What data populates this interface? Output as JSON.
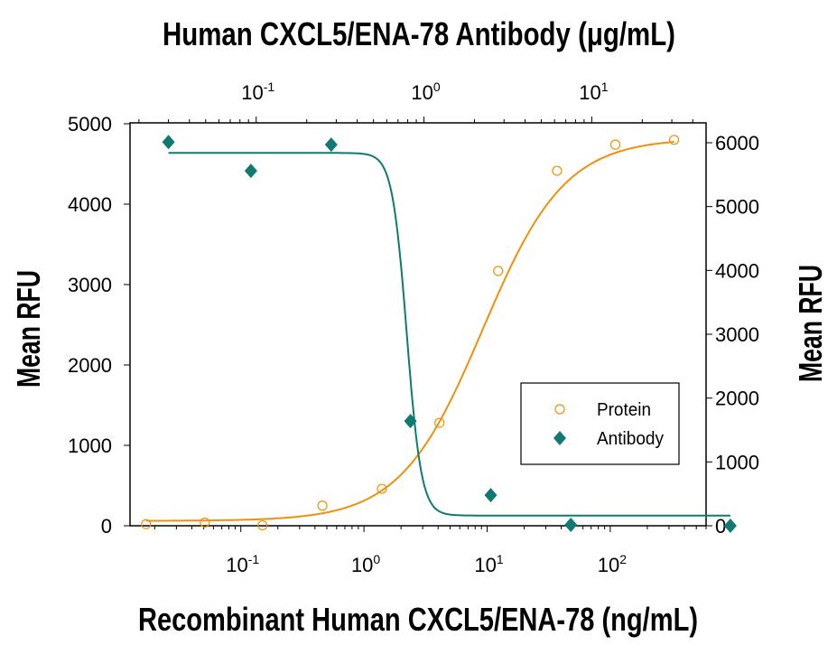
{
  "chart_data": {
    "type": "scatter",
    "title": "Human CXCL5/ENA-78 Antibody (μg/mL)",
    "xlabel": "Recombinant Human CXCL5/ENA-78 (ng/mL)",
    "ylabel_left": "Mean RFU",
    "ylabel_right": "Mean RFU",
    "x_bottom": {
      "scale": "log",
      "range": [
        0.0126,
        600
      ],
      "tick_labels": [
        {
          "base": "10",
          "exp": "-1",
          "value": 0.1
        },
        {
          "base": "10",
          "exp": "0",
          "value": 1
        },
        {
          "base": "10",
          "exp": "1",
          "value": 10
        },
        {
          "base": "10",
          "exp": "2",
          "value": 100
        }
      ]
    },
    "x_top": {
      "scale": "log",
      "range": [
        0.0177,
        48
      ],
      "tick_labels": [
        {
          "base": "10",
          "exp": "-1",
          "value": 0.1
        },
        {
          "base": "10",
          "exp": "0",
          "value": 1
        },
        {
          "base": "10",
          "exp": "1",
          "value": 10
        }
      ]
    },
    "y_left": {
      "range": [
        0,
        5000
      ],
      "ticks": [
        0,
        1000,
        2000,
        3000,
        4000,
        5000
      ]
    },
    "y_right": {
      "range": [
        0,
        6000
      ],
      "ticks": [
        0,
        1000,
        2000,
        3000,
        4000,
        5000,
        6000
      ]
    },
    "grid": false,
    "legend": {
      "position": "bottom-right",
      "entries": [
        "Protein",
        "Antibody"
      ]
    },
    "series": [
      {
        "name": "Protein",
        "axes": "bottom-left",
        "marker": "open-circle",
        "color": "#f0900a",
        "x": [
          0.017,
          0.051,
          0.15,
          0.46,
          1.4,
          4.1,
          12.3,
          37,
          110,
          330
        ],
        "y": [
          20,
          40,
          5,
          250,
          460,
          1280,
          3170,
          4415,
          4740,
          4800
        ],
        "fit": {
          "bottom": 60,
          "top": 4820,
          "ec50": 9.2,
          "hill": 1.3
        }
      },
      {
        "name": "Antibody",
        "axes": "top-right",
        "marker": "filled-diamond",
        "color": "#0e7a70",
        "x": [
          0.03,
          0.093,
          0.28,
          0.83,
          2.5,
          7.5,
          67
        ],
        "y": [
          6010,
          5560,
          5970,
          1640,
          480,
          15,
          0
        ],
        "fit": {
          "bottom": 160,
          "top": 5840,
          "ic50": 0.79,
          "hill": 10
        }
      }
    ]
  }
}
